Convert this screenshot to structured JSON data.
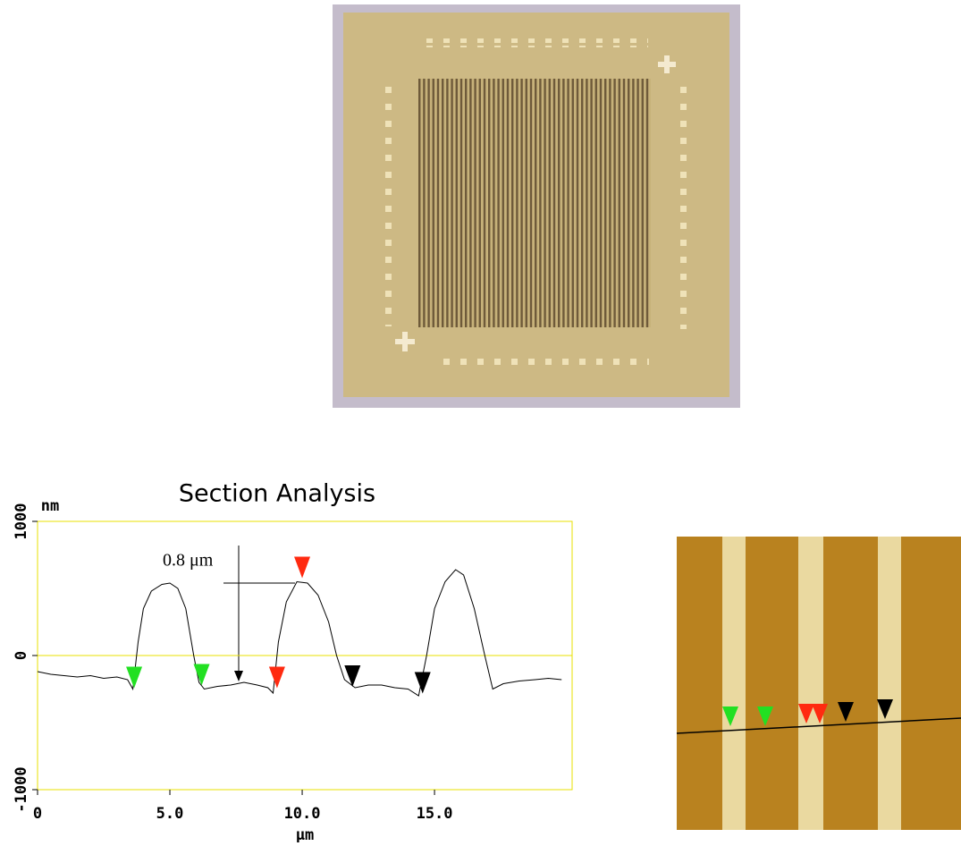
{
  "chart_data": {
    "type": "line",
    "title": "Section Analysis",
    "y_label": "nm",
    "x_label": "μm",
    "annotation": "0.8 μm",
    "x": [
      0,
      0.5,
      1,
      1.5,
      2,
      2.5,
      3,
      3.4,
      3.6,
      3.8,
      4.0,
      4.3,
      4.7,
      5.0,
      5.3,
      5.6,
      5.9,
      6.1,
      6.3,
      6.8,
      7.3,
      7.8,
      8.3,
      8.7,
      8.9,
      9.1,
      9.4,
      9.8,
      10.2,
      10.6,
      11.0,
      11.3,
      11.6,
      12.0,
      12.5,
      13.0,
      13.5,
      14.0,
      14.4,
      14.7,
      15.0,
      15.4,
      15.8,
      16.1,
      16.5,
      16.9,
      17.2,
      17.6,
      18.2,
      18.8,
      19.3,
      19.8
    ],
    "values": [
      -120,
      -140,
      -150,
      -160,
      -150,
      -170,
      -160,
      -180,
      -250,
      100,
      350,
      480,
      530,
      540,
      500,
      350,
      0,
      -200,
      -250,
      -230,
      -220,
      -200,
      -220,
      -240,
      -280,
      100,
      400,
      550,
      540,
      450,
      250,
      0,
      -180,
      -240,
      -220,
      -220,
      -240,
      -250,
      -300,
      0,
      350,
      550,
      640,
      600,
      350,
      0,
      -250,
      -210,
      -190,
      -180,
      -170,
      -180
    ],
    "color": "#000000",
    "frame_color": "#e8e000",
    "markers": [
      {
        "x": 3.65,
        "y": -170,
        "color": "#22e022"
      },
      {
        "x": 6.2,
        "y": -150,
        "color": "#22e022"
      },
      {
        "x": 9.05,
        "y": -170,
        "color": "#ff2a10"
      },
      {
        "x": 10.0,
        "y": 650,
        "color": "#ff2a10"
      },
      {
        "x": 11.9,
        "y": -160,
        "color": "#000000"
      },
      {
        "x": 14.55,
        "y": -210,
        "color": "#000000"
      }
    ],
    "xlim": [
      0,
      20.2
    ],
    "ylim": [
      -1000,
      1000
    ],
    "xticks": [
      0,
      {
        "value": 5,
        "label": "5.0"
      },
      {
        "value": 10,
        "label": "10.0"
      },
      {
        "value": 15,
        "label": "15.0"
      }
    ],
    "yticks": [
      -1000,
      0,
      1000
    ]
  }
}
